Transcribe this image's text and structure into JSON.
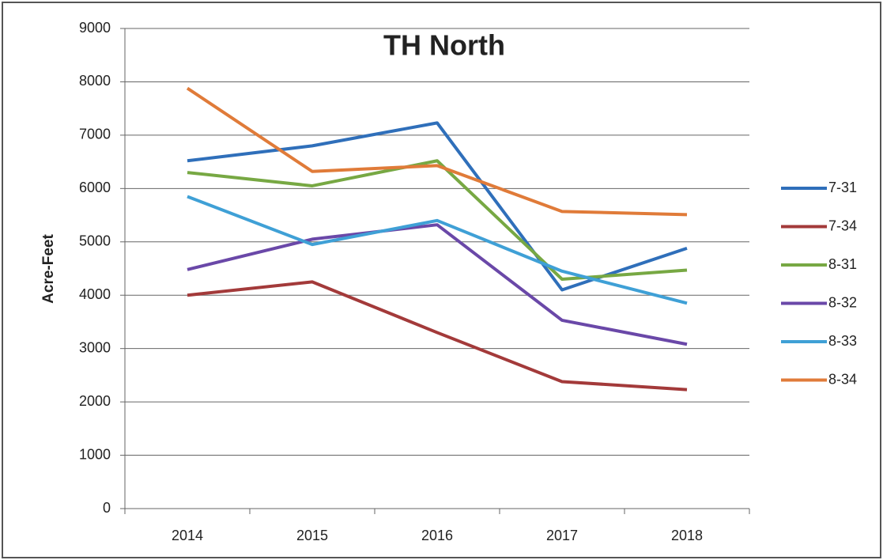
{
  "chart_data": {
    "type": "line",
    "title": "TH North",
    "y_label": "Acre-Feet",
    "categories": [
      "2014",
      "2015",
      "2016",
      "2017",
      "2018"
    ],
    "series": [
      {
        "name": "7-31",
        "color": "#2f6fba",
        "values": [
          6520,
          6800,
          7230,
          4100,
          4880
        ]
      },
      {
        "name": "7-34",
        "color": "#a33a3a",
        "values": [
          4000,
          4250,
          3300,
          2380,
          2230
        ]
      },
      {
        "name": "8-31",
        "color": "#77a843",
        "values": [
          6300,
          6050,
          6520,
          4300,
          4470
        ]
      },
      {
        "name": "8-32",
        "color": "#6a48a8",
        "values": [
          4480,
          5050,
          5320,
          3530,
          3080
        ]
      },
      {
        "name": "8-33",
        "color": "#3fa0d6",
        "values": [
          5850,
          4950,
          5400,
          4450,
          3850
        ]
      },
      {
        "name": "8-34",
        "color": "#e07b39",
        "values": [
          7880,
          6320,
          6430,
          5570,
          5510
        ]
      }
    ],
    "ylim": [
      0,
      9000
    ],
    "yticks": [
      0,
      1000,
      2000,
      3000,
      4000,
      5000,
      6000,
      7000,
      8000,
      9000
    ],
    "grid": true,
    "legend": "right"
  }
}
